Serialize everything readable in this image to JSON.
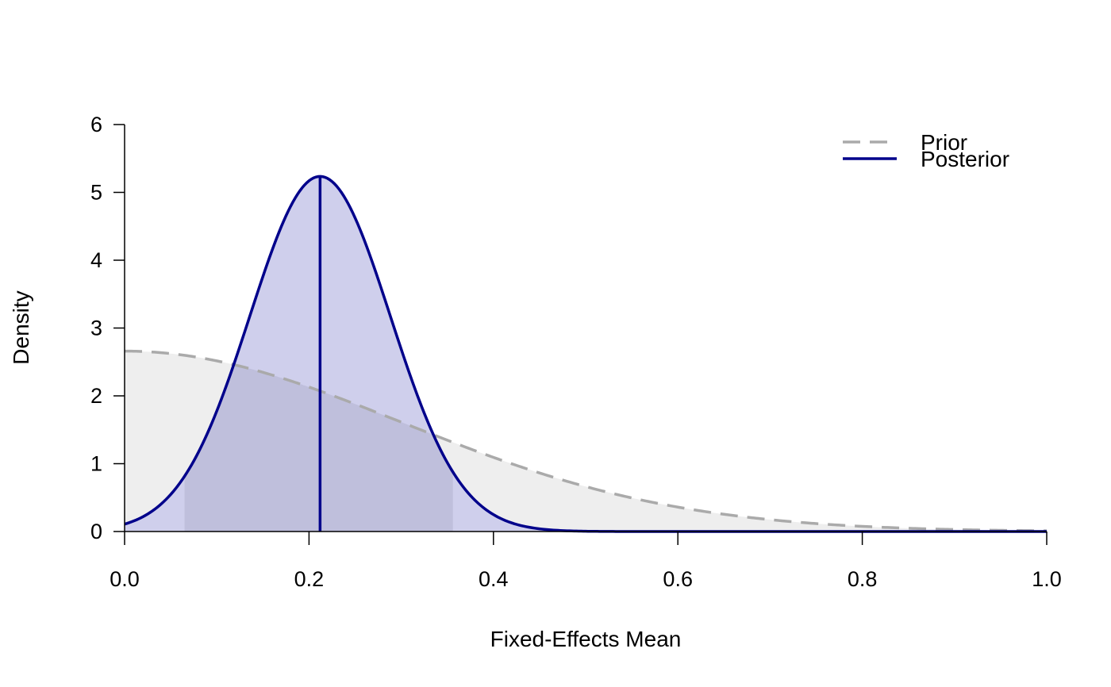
{
  "chart_data": {
    "type": "area",
    "title": "",
    "xlabel": "Fixed-Effects Mean",
    "ylabel": "Density",
    "xlim": [
      0,
      1
    ],
    "ylim": [
      0,
      6
    ],
    "xticks": [
      "0.0",
      "0.2",
      "0.4",
      "0.6",
      "0.8",
      "1.0"
    ],
    "yticks": [
      "0",
      "1",
      "2",
      "3",
      "4",
      "5",
      "6"
    ],
    "grid": false,
    "legend_position": "top-right",
    "series": [
      {
        "name": "Prior",
        "line_style": "dashed",
        "color": "#aaaaaa",
        "fill_color": "#eeeeee",
        "distribution": "half-normal",
        "scale": 0.3,
        "x": [
          0.0,
          0.1,
          0.2,
          0.3,
          0.4,
          0.5,
          0.6,
          0.7,
          0.8,
          0.9,
          1.0
        ],
        "y": [
          2.66,
          2.52,
          2.13,
          1.61,
          1.09,
          0.66,
          0.36,
          0.17,
          0.07,
          0.03,
          0.01
        ]
      },
      {
        "name": "Posterior",
        "line_style": "solid",
        "color": "#00008b",
        "fill_color": "#cccceb",
        "distribution": "normal",
        "mean": 0.212,
        "sd": 0.0762,
        "x": [
          0.0,
          0.1,
          0.2,
          0.212,
          0.3,
          0.4,
          0.5,
          0.6,
          0.8,
          1.0
        ],
        "y": [
          0.11,
          1.78,
          5.17,
          5.24,
          2.7,
          0.25,
          0.0,
          0.0,
          0.0,
          0.0
        ]
      }
    ],
    "credible_interval": {
      "lower": 0.065,
      "upper": 0.356,
      "fill_color": "#bfbfdc"
    },
    "posterior_mean_line": 0.212
  }
}
